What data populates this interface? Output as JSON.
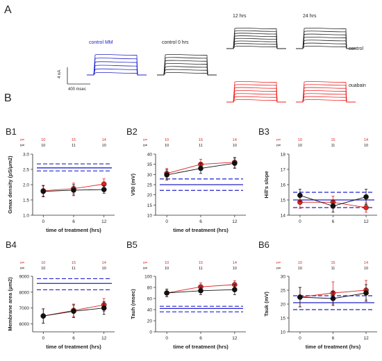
{
  "panel_a": {
    "letter": "A",
    "traces": [
      {
        "label": "control MM",
        "color": "#2222cc"
      },
      {
        "label": "control 0 hrs",
        "color": "#222222"
      },
      {
        "label": "12 hrs",
        "color": "#222222"
      },
      {
        "label": "24 hrs",
        "color": "#222222"
      }
    ],
    "row_labels": {
      "control": "control",
      "ouabain": "ouabain"
    },
    "ouabain_color": "#ee2222",
    "scale_bar": {
      "y_label": "4 nA",
      "x_label": "400 msec"
    }
  },
  "panel_b": {
    "letter": "B"
  },
  "n_labels": {
    "prefix": "n=",
    "red_counts": [
      "10",
      "15",
      "14"
    ],
    "black_counts": [
      "10",
      "11",
      "10"
    ]
  },
  "colors": {
    "treated": "#dd2222",
    "control": "#111111",
    "reference": "#2222cc"
  },
  "chart_data": [
    {
      "id": "B1",
      "type": "line",
      "xlabel": "time of treatment (hrs)",
      "ylabel": "Gmax density (pS/μm2)",
      "x": [
        0,
        6,
        12
      ],
      "ylim": [
        1.0,
        3.0
      ],
      "yticks": [
        1.0,
        1.5,
        2.0,
        2.5,
        3.0
      ],
      "series": [
        {
          "values": [
            1.8,
            1.87,
            2.02
          ],
          "err": [
            0.18,
            0.18,
            0.17
          ],
          "color": "#dd2222"
        },
        {
          "values": [
            1.78,
            1.82,
            1.84
          ],
          "err": [
            0.18,
            0.18,
            0.12
          ],
          "color": "#111111"
        }
      ],
      "reference": {
        "mean": 2.55,
        "lower": 2.45,
        "upper": 2.68
      }
    },
    {
      "id": "B2",
      "type": "line",
      "xlabel": "time of treatment (hrs)",
      "ylabel": "V50 (mV)",
      "x": [
        0,
        6,
        12
      ],
      "ylim": [
        10,
        40
      ],
      "yticks": [
        10,
        15,
        20,
        25,
        30,
        35,
        40
      ],
      "series": [
        {
          "values": [
            30.5,
            35.0,
            36.0
          ],
          "err": [
            2.5,
            2.5,
            2.5
          ],
          "color": "#dd2222"
        },
        {
          "values": [
            29.8,
            33.0,
            35.5
          ],
          "err": [
            2.5,
            2.5,
            2.5
          ],
          "color": "#111111"
        }
      ],
      "reference": {
        "mean": 25.0,
        "lower": 22.2,
        "upper": 27.8
      }
    },
    {
      "id": "B3",
      "type": "line",
      "xlabel": "",
      "ylabel": "Hill's slope",
      "x": [
        0,
        6,
        12
      ],
      "ylim": [
        14,
        18
      ],
      "yticks": [
        14,
        15,
        16,
        17,
        18
      ],
      "series": [
        {
          "values": [
            14.85,
            14.85,
            14.5
          ],
          "err": [
            0.4,
            0.4,
            0.3
          ],
          "color": "#dd2222"
        },
        {
          "values": [
            15.3,
            14.6,
            15.2
          ],
          "err": [
            0.4,
            0.4,
            0.5
          ],
          "color": "#111111"
        }
      ],
      "reference": {
        "mean": 15.0,
        "lower": 14.5,
        "upper": 15.5
      }
    },
    {
      "id": "B4",
      "type": "line",
      "xlabel": "time of treatment (hrs)",
      "ylabel": "Membrane area (μm2)",
      "x": [
        0,
        6,
        12
      ],
      "ylim": [
        5500,
        9000
      ],
      "yticks": [
        6000,
        7000,
        8000,
        9000
      ],
      "series": [
        {
          "values": [
            6500,
            6850,
            7200
          ],
          "err": [
            450,
            400,
            400
          ],
          "color": "#dd2222"
        },
        {
          "values": [
            6500,
            6800,
            7000
          ],
          "err": [
            450,
            400,
            400
          ],
          "color": "#111111"
        }
      ],
      "reference": {
        "mean": 8550,
        "lower": 8150,
        "upper": 8850
      }
    },
    {
      "id": "B5",
      "type": "line",
      "xlabel": "time of treatment (hrs)",
      "ylabel": "Tauh (msec)",
      "x": [
        0,
        6,
        12
      ],
      "ylim": [
        0,
        100
      ],
      "yticks": [
        0,
        20,
        40,
        60,
        80,
        100
      ],
      "series": [
        {
          "values": [
            70,
            81,
            85
          ],
          "err": [
            7,
            7,
            7
          ],
          "color": "#dd2222"
        },
        {
          "values": [
            70,
            74,
            76
          ],
          "err": [
            7,
            7,
            9
          ],
          "color": "#111111"
        }
      ],
      "reference": {
        "mean": 42,
        "lower": 36,
        "upper": 46
      }
    },
    {
      "id": "B6",
      "type": "line",
      "xlabel": "time of treatment (hrs)",
      "ylabel": "Tauk (mV)",
      "x": [
        0,
        6,
        12
      ],
      "ylim": [
        10,
        30
      ],
      "yticks": [
        10,
        15,
        20,
        25,
        30
      ],
      "series": [
        {
          "values": [
            22.5,
            24.0,
            25.0
          ],
          "err": [
            3.5,
            4.0,
            3.5
          ],
          "color": "#dd2222"
        },
        {
          "values": [
            22.5,
            22.0,
            24.0
          ],
          "err": [
            3.5,
            2.5,
            3.0
          ],
          "color": "#111111"
        }
      ],
      "reference": {
        "mean": 20.5,
        "lower": 18.0,
        "upper": 23.0
      }
    }
  ]
}
